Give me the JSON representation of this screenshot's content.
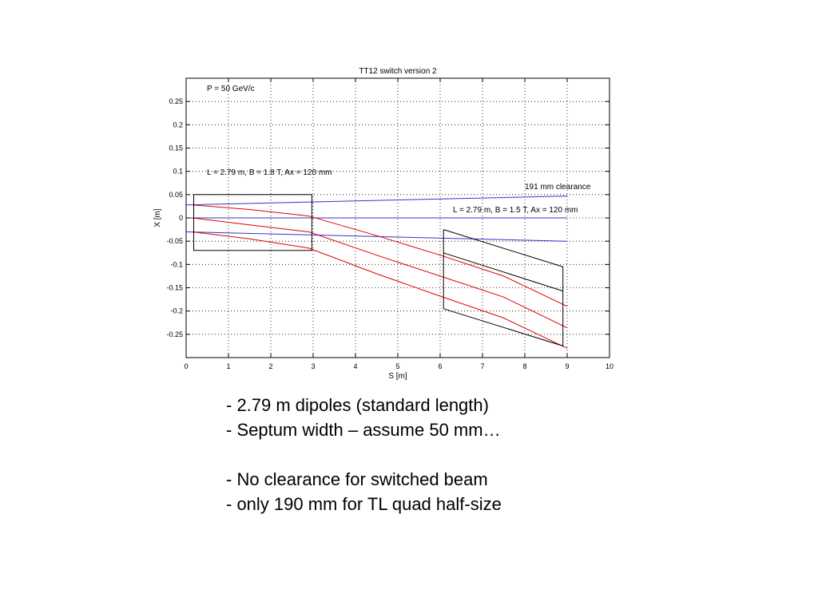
{
  "chart_data": {
    "type": "line",
    "title": "TT12 switch version 2",
    "xlabel": "S [m]",
    "ylabel": "X [m]",
    "xlim": [
      0,
      10
    ],
    "ylim": [
      -0.3,
      0.3
    ],
    "xticks": [
      0,
      1,
      2,
      3,
      4,
      5,
      6,
      7,
      8,
      9,
      10
    ],
    "xtick_labels": [
      "0",
      "1",
      "2",
      "3",
      "4",
      "5",
      "6",
      "7",
      "8",
      "9",
      "10"
    ],
    "yticks": [
      0.25,
      0.2,
      0.15,
      0.1,
      0.05,
      0,
      -0.05,
      -0.1,
      -0.15,
      -0.2,
      -0.25
    ],
    "ytick_labels": [
      "0.25",
      "0.2",
      "0.15",
      "0.1",
      "0.05",
      "0",
      "-0.05",
      "-0.1",
      "-0.15",
      "-0.2",
      "-0.25"
    ],
    "grid": true,
    "colors": {
      "straight_beam": "#3535c8",
      "switched_beam": "#e00000",
      "magnet_outline": "#000000"
    },
    "series": [
      {
        "color": "#3535c8",
        "x": [
          0,
          9
        ],
        "y": [
          0.028,
          0.047
        ]
      },
      {
        "color": "#3535c8",
        "x": [
          0,
          9
        ],
        "y": [
          0.0,
          0.0
        ]
      },
      {
        "color": "#3535c8",
        "x": [
          0,
          9
        ],
        "y": [
          -0.03,
          -0.05
        ]
      },
      {
        "color": "#e00000",
        "x": [
          0.15,
          1.5,
          2.9,
          4.5,
          6.0,
          7.5,
          9.0
        ],
        "y": [
          0.028,
          0.018,
          0.004,
          -0.038,
          -0.08,
          -0.125,
          -0.19
        ]
      },
      {
        "color": "#e00000",
        "x": [
          0.15,
          1.5,
          2.9,
          4.5,
          6.0,
          7.5,
          9.0
        ],
        "y": [
          0.0,
          -0.015,
          -0.03,
          -0.08,
          -0.125,
          -0.17,
          -0.236
        ]
      },
      {
        "color": "#e00000",
        "x": [
          0.15,
          1.5,
          2.9,
          4.5,
          6.0,
          7.5,
          9.0
        ],
        "y": [
          -0.03,
          -0.045,
          -0.065,
          -0.12,
          -0.168,
          -0.215,
          -0.28
        ]
      },
      {
        "color": "#000000",
        "x": [
          0.18,
          2.97,
          2.97,
          0.18,
          0.18
        ],
        "y": [
          0.05,
          0.05,
          -0.07,
          -0.07,
          0.05
        ]
      },
      {
        "color": "#000000",
        "x": [
          6.08,
          8.9,
          8.9,
          6.08,
          6.08
        ],
        "y": [
          -0.025,
          -0.105,
          -0.275,
          -0.195,
          -0.025
        ]
      },
      {
        "color": "#000000",
        "x": [
          6.08,
          8.9
        ],
        "y": [
          -0.075,
          -0.157
        ]
      }
    ],
    "annotations": [
      {
        "text": "P = 50 GeV/c",
        "x": 0.5,
        "y": 0.275
      },
      {
        "text": "L = 2.79 m, B = 1.8 T, Ax = 120 mm",
        "x": 0.5,
        "y": 0.1
      },
      {
        "text": "191 mm clearance",
        "x": 8.0,
        "y": 0.068
      },
      {
        "text": "L = 2.79 m, B = 1.5 T, Ax = 120 mm",
        "x": 6.3,
        "y": 0.018
      }
    ]
  },
  "notes": [
    "- 2.79 m dipoles (standard length)",
    "- Septum width – assume 50 mm…",
    "- No clearance for switched beam",
    "- only 190 mm for TL quad half-size"
  ]
}
